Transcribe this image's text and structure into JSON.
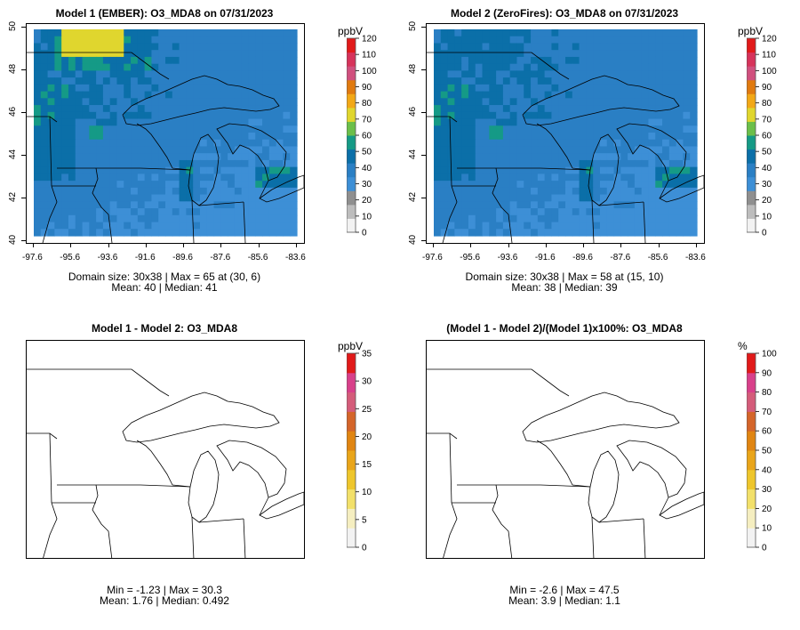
{
  "panels": [
    {
      "title": "Model 1 (EMBER): O3_MDA8 on 07/31/2023",
      "colorbar_unit": "ppbV",
      "colorbar_ticks": [
        "0",
        "10",
        "20",
        "30",
        "40",
        "50",
        "60",
        "70",
        "80",
        "90",
        "100",
        "110",
        "120"
      ],
      "colorbar_colors": [
        "#f2f2f2",
        "#bdbdbd",
        "#8f8f8f",
        "#3d8fd6",
        "#2a7fc4",
        "#0b6fa8",
        "#159a86",
        "#6cbf4a",
        "#e0d62e",
        "#f2a817",
        "#e07a10",
        "#d0507e",
        "#d6335a",
        "#e11a1a"
      ],
      "stat_line1": "Domain size: 30x38 | Max = 65 at (30, 6)",
      "stat_line2": "Mean: 40 |  Median: 41",
      "x_ticks": [
        "-97.6",
        "-95.6",
        "-93.6",
        "-91.6",
        "-89.6",
        "-87.6",
        "-85.6",
        "-83.6"
      ],
      "y_ticks": [
        "40",
        "42",
        "44",
        "46",
        "48",
        "50"
      ],
      "field": "model1"
    },
    {
      "title": "Model 2 (ZeroFires): O3_MDA8 on 07/31/2023",
      "colorbar_unit": "ppbV",
      "colorbar_ticks": [
        "0",
        "10",
        "20",
        "30",
        "40",
        "50",
        "60",
        "70",
        "80",
        "90",
        "100",
        "110",
        "120"
      ],
      "colorbar_colors": [
        "#f2f2f2",
        "#bdbdbd",
        "#8f8f8f",
        "#3d8fd6",
        "#2a7fc4",
        "#0b6fa8",
        "#159a86",
        "#6cbf4a",
        "#e0d62e",
        "#f2a817",
        "#e07a10",
        "#d0507e",
        "#d6335a",
        "#e11a1a"
      ],
      "stat_line1": "Domain size: 30x38 | Max = 58 at (15, 10)",
      "stat_line2": "Mean: 38 |  Median: 39",
      "x_ticks": [
        "-97.6",
        "-95.6",
        "-93.6",
        "-91.6",
        "-89.6",
        "-87.6",
        "-85.6",
        "-83.6"
      ],
      "y_ticks": [
        "40",
        "42",
        "44",
        "46",
        "48",
        "50"
      ],
      "field": "model2"
    },
    {
      "title": "Model 1 - Model 2: O3_MDA8",
      "colorbar_unit": "ppbV",
      "colorbar_ticks": [
        "0",
        "5",
        "10",
        "15",
        "20",
        "25",
        "30",
        "35"
      ],
      "colorbar_colors": [
        "#f2f2f2",
        "#f5eec0",
        "#f2e06a",
        "#eec62c",
        "#e9a51a",
        "#e08512",
        "#d4652a",
        "#d45c7a",
        "#d8408a",
        "#e11a1a"
      ],
      "stat_line1": "Min = -1.23 | Max = 30.3",
      "stat_line2": "Mean: 1.76 |  Median: 0.492",
      "x_ticks": [],
      "y_ticks": [],
      "field": "diff"
    },
    {
      "title": "(Model 1 - Model 2)/(Model 1)x100%: O3_MDA8",
      "colorbar_unit": "%",
      "colorbar_ticks": [
        "0",
        "10",
        "20",
        "30",
        "40",
        "50",
        "60",
        "70",
        "80",
        "90",
        "100"
      ],
      "colorbar_colors": [
        "#f2f2f2",
        "#f5eec0",
        "#f2e06a",
        "#eec62c",
        "#e9a51a",
        "#e08512",
        "#d4652a",
        "#d45c7a",
        "#d8408a",
        "#e11a1a"
      ],
      "stat_line1": "Min = -2.6 | Max = 47.5",
      "stat_line2": "Mean: 3.9 |  Median: 1.1",
      "x_ticks": [],
      "y_ticks": [],
      "field": "pct"
    }
  ]
}
